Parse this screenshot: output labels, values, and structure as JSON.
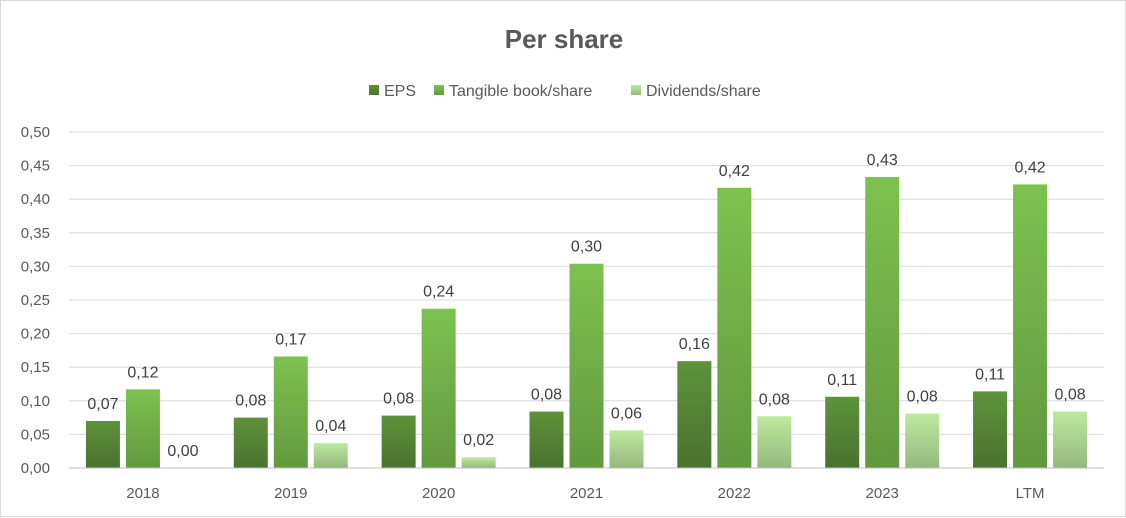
{
  "chart_data": {
    "type": "bar",
    "title": "Per share",
    "categories": [
      "2018",
      "2019",
      "2020",
      "2021",
      "2022",
      "2023",
      "LTM"
    ],
    "series": [
      {
        "name": "EPS",
        "color": "#548235",
        "values": [
          0.07,
          0.075,
          0.078,
          0.084,
          0.159,
          0.106,
          0.114
        ],
        "labels": [
          "0,07",
          "0,08",
          "0,08",
          "0,08",
          "0,16",
          "0,11",
          "0,11"
        ]
      },
      {
        "name": "Tangible book/share",
        "color": "#70ad47",
        "values": [
          0.117,
          0.166,
          0.237,
          0.304,
          0.417,
          0.433,
          0.422
        ],
        "labels": [
          "0,12",
          "0,17",
          "0,24",
          "0,30",
          "0,42",
          "0,43",
          "0,42"
        ]
      },
      {
        "name": "Dividends/share",
        "color": "#a9d18e",
        "values": [
          0.0,
          0.037,
          0.016,
          0.056,
          0.077,
          0.081,
          0.084
        ],
        "labels": [
          "0,00",
          "0,04",
          "0,02",
          "0,06",
          "0,08",
          "0,08",
          "0,08"
        ]
      }
    ],
    "ylim": [
      0,
      0.5
    ],
    "yticks": [
      "0,00",
      "0,05",
      "0,10",
      "0,15",
      "0,20",
      "0,25",
      "0,30",
      "0,35",
      "0,40",
      "0,45",
      "0,50"
    ],
    "grid": true,
    "legend_position": "top"
  }
}
